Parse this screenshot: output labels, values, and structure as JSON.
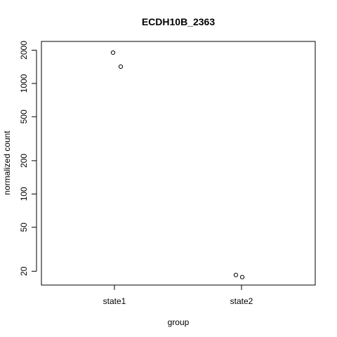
{
  "chart_data": {
    "type": "scatter",
    "title": "ECDH10B_2363",
    "xlabel": "group",
    "ylabel": "normalized count",
    "y_scale": "log",
    "ylim": [
      15,
      2400
    ],
    "categories": [
      "state1",
      "state2"
    ],
    "y_ticks": [
      20,
      50,
      100,
      200,
      500,
      1000,
      2000
    ],
    "y_tick_labels": [
      "20",
      "50",
      "100",
      "200",
      "500",
      "1000",
      "2000"
    ],
    "points": [
      {
        "category": "state1",
        "y": 1900
      },
      {
        "category": "state1",
        "y": 1420
      },
      {
        "category": "state2",
        "y": 18.5
      },
      {
        "category": "state2",
        "y": 17.7
      }
    ],
    "grid": false,
    "marker": "open-circle",
    "colors": {
      "points": "#000000",
      "axes": "#000000",
      "background": "#ffffff"
    }
  }
}
